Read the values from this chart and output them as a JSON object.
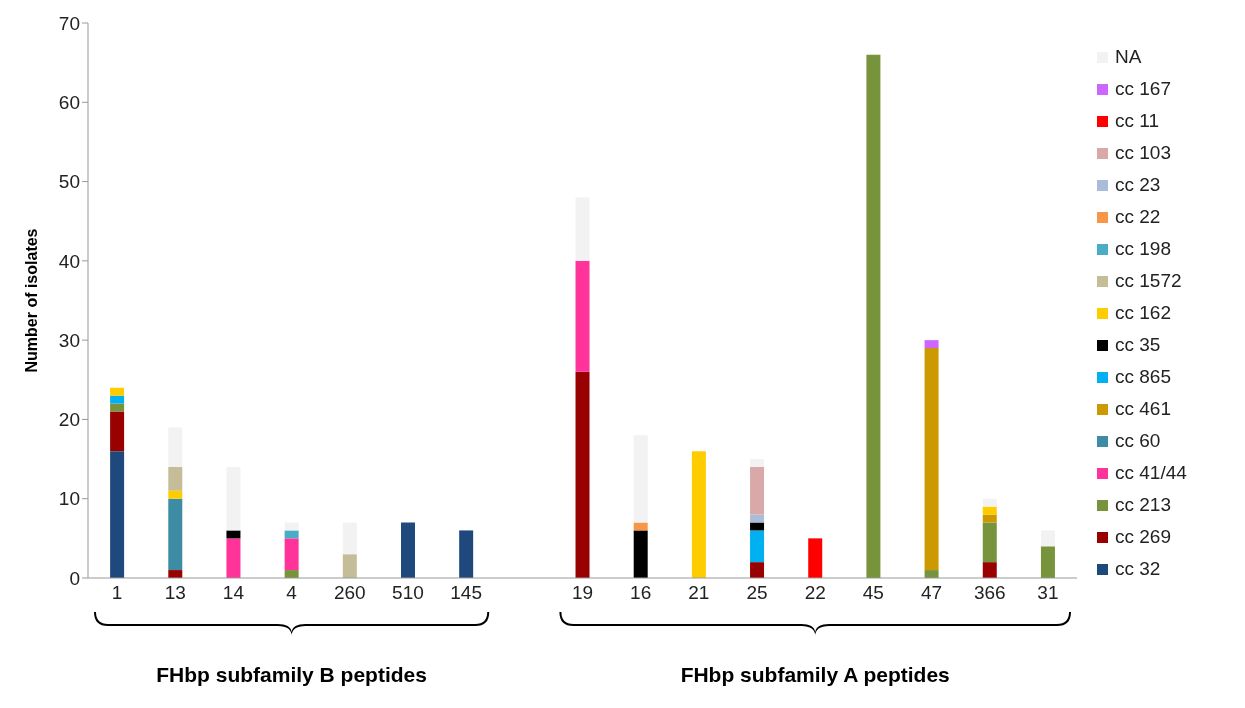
{
  "chart_data": {
    "type": "bar",
    "stacked": true,
    "ylabel": "Number of isolates",
    "categories": [
      "1",
      "13",
      "14",
      "4",
      "260",
      "510",
      "145",
      null,
      "19",
      "16",
      "21",
      "25",
      "22",
      "45",
      "47",
      "366",
      "31"
    ],
    "ylim": [
      0,
      70
    ],
    "yticks": [
      0,
      10,
      20,
      30,
      40,
      50,
      60,
      70
    ],
    "grid": false,
    "legend": "right",
    "annotations": [
      "FHbp subfamily B peptides",
      "FHbp subfamily A peptides"
    ],
    "series": [
      {
        "name": "cc 32",
        "color": "#1f497d",
        "values": [
          16,
          null,
          null,
          null,
          null,
          7,
          6,
          null,
          null,
          null,
          null,
          null,
          null,
          null,
          null,
          null,
          null
        ]
      },
      {
        "name": "cc 269",
        "color": "#990000",
        "values": [
          5,
          1,
          null,
          null,
          null,
          null,
          null,
          null,
          26,
          null,
          null,
          2,
          null,
          null,
          null,
          2,
          null
        ]
      },
      {
        "name": "cc 213",
        "color": "#77933c",
        "values": [
          1,
          null,
          null,
          1,
          null,
          null,
          null,
          null,
          null,
          null,
          null,
          null,
          null,
          66,
          1,
          5,
          4
        ]
      },
      {
        "name": "cc 41/44",
        "color": "#ff3399",
        "values": [
          null,
          null,
          5,
          4,
          null,
          null,
          null,
          null,
          14,
          null,
          null,
          null,
          null,
          null,
          null,
          null,
          null
        ]
      },
      {
        "name": "cc 60",
        "color": "#3d8ca3",
        "values": [
          null,
          9,
          null,
          null,
          null,
          null,
          null,
          null,
          null,
          null,
          null,
          null,
          null,
          null,
          null,
          null,
          null
        ]
      },
      {
        "name": "cc 461",
        "color": "#cc9900",
        "values": [
          null,
          null,
          null,
          null,
          null,
          null,
          null,
          null,
          null,
          null,
          null,
          null,
          null,
          null,
          28,
          1,
          null
        ]
      },
      {
        "name": "cc 865",
        "color": "#00b0f0",
        "values": [
          1,
          null,
          null,
          null,
          null,
          null,
          null,
          null,
          null,
          null,
          null,
          4,
          null,
          null,
          null,
          null,
          null
        ]
      },
      {
        "name": "cc 35",
        "color": "#000000",
        "values": [
          null,
          null,
          1,
          null,
          null,
          null,
          null,
          null,
          null,
          6,
          null,
          1,
          null,
          null,
          null,
          null,
          null
        ]
      },
      {
        "name": "cc 162",
        "color": "#ffcc00",
        "values": [
          1,
          1,
          null,
          null,
          null,
          null,
          null,
          null,
          null,
          null,
          16,
          null,
          null,
          null,
          null,
          1,
          null
        ]
      },
      {
        "name": "cc 1572",
        "color": "#c4bd97",
        "values": [
          null,
          3,
          null,
          null,
          3,
          null,
          null,
          null,
          null,
          null,
          null,
          null,
          null,
          null,
          null,
          null,
          null
        ]
      },
      {
        "name": "cc 198",
        "color": "#4bacc6",
        "values": [
          null,
          null,
          null,
          1,
          null,
          null,
          null,
          null,
          null,
          null,
          null,
          null,
          null,
          null,
          null,
          null,
          null
        ]
      },
      {
        "name": "cc 22",
        "color": "#f79646",
        "values": [
          null,
          null,
          null,
          null,
          null,
          null,
          null,
          null,
          null,
          1,
          null,
          null,
          null,
          null,
          null,
          null,
          null
        ]
      },
      {
        "name": "cc 23",
        "color": "#a9bcd9",
        "values": [
          null,
          null,
          null,
          null,
          null,
          null,
          null,
          null,
          null,
          null,
          null,
          1,
          null,
          null,
          null,
          null,
          null
        ]
      },
      {
        "name": "cc 103",
        "color": "#d9a9a9",
        "values": [
          null,
          null,
          null,
          null,
          null,
          null,
          null,
          null,
          null,
          null,
          null,
          6,
          null,
          null,
          null,
          null,
          null
        ]
      },
      {
        "name": "cc 11",
        "color": "#ff0000",
        "values": [
          null,
          null,
          null,
          null,
          null,
          null,
          null,
          null,
          null,
          null,
          null,
          null,
          5,
          null,
          null,
          null,
          null
        ]
      },
      {
        "name": "cc 167",
        "color": "#cc66ff",
        "values": [
          null,
          null,
          null,
          null,
          null,
          null,
          null,
          null,
          null,
          null,
          null,
          null,
          null,
          null,
          1,
          null,
          null
        ]
      },
      {
        "name": "NA",
        "color": "#f2f2f2",
        "values": [
          null,
          5,
          8,
          1,
          4,
          null,
          null,
          null,
          8,
          11,
          null,
          1,
          null,
          null,
          null,
          1,
          2
        ]
      }
    ]
  }
}
